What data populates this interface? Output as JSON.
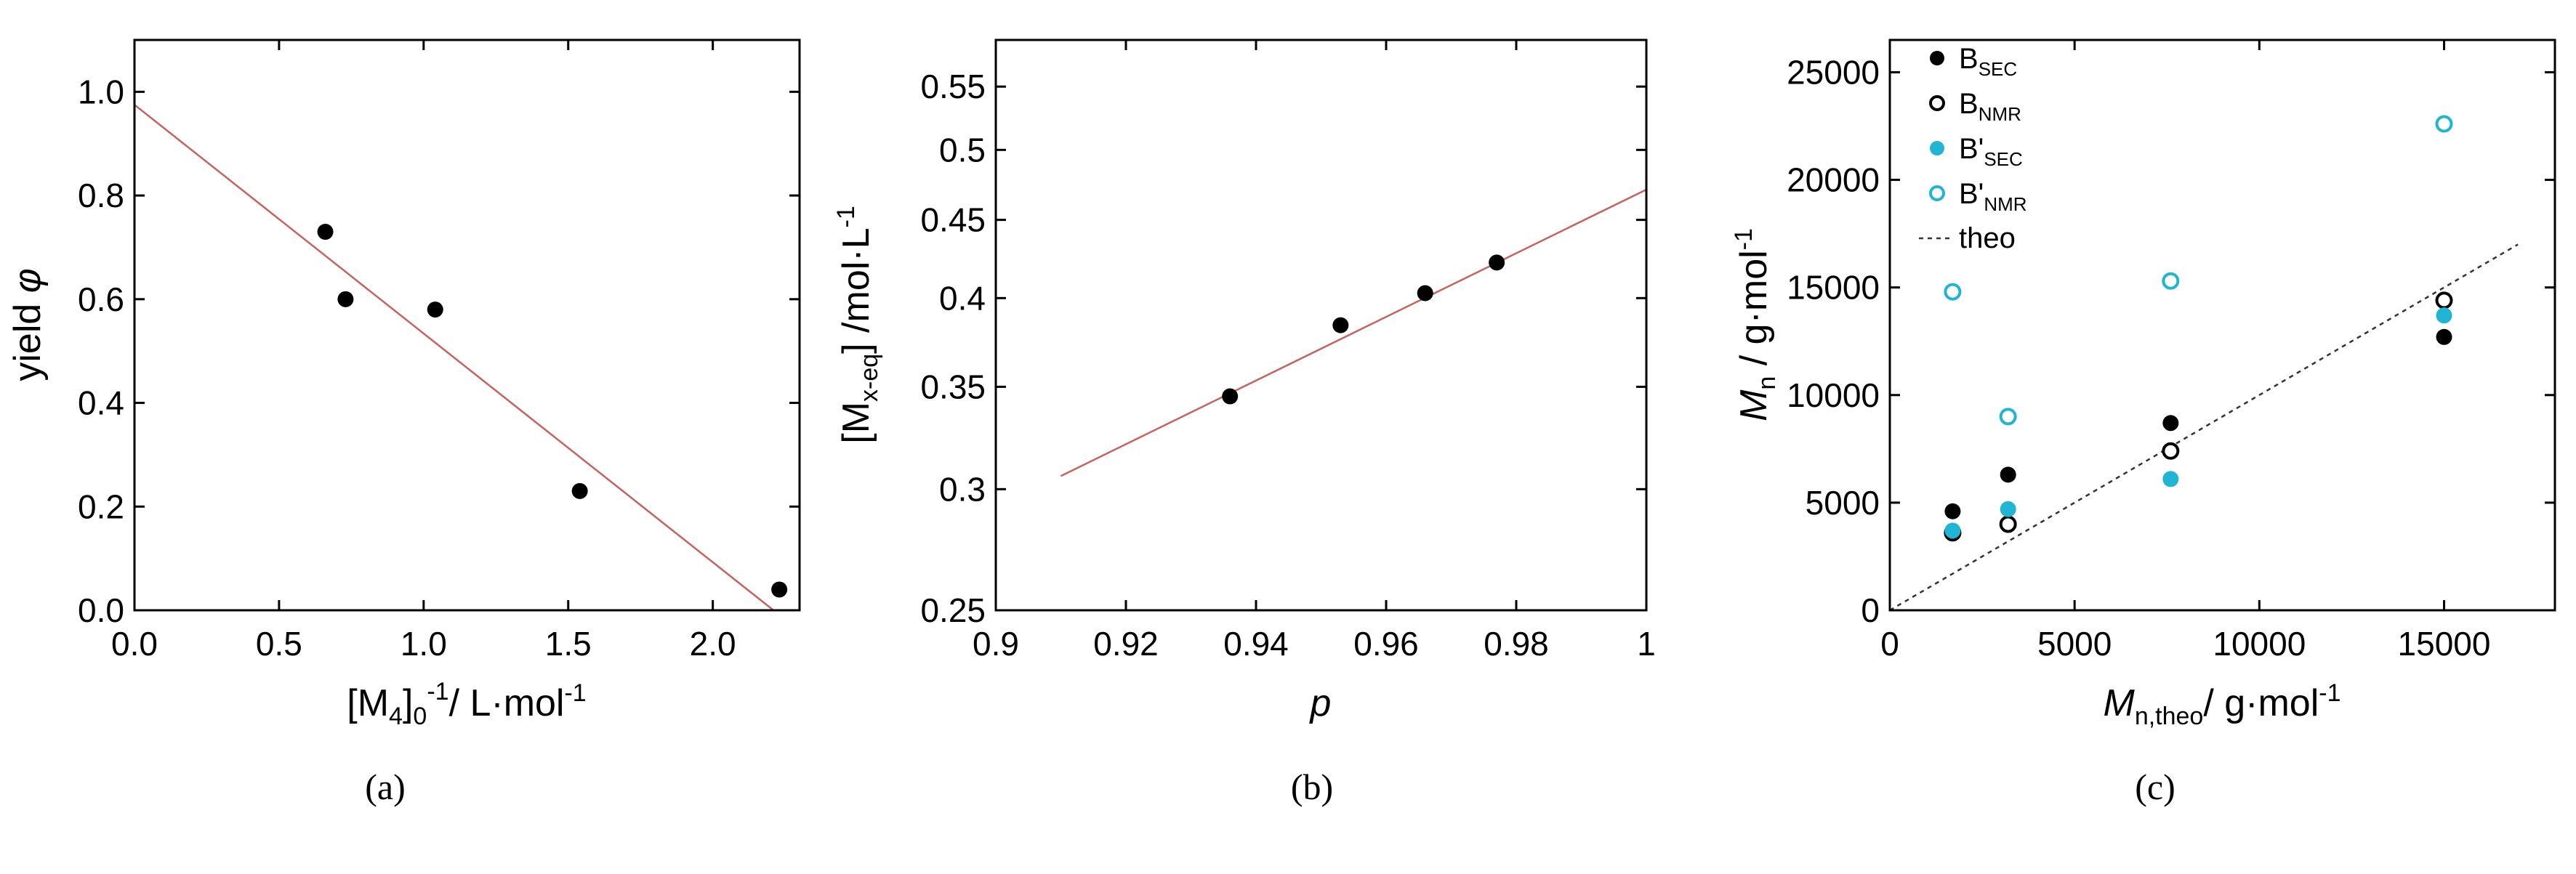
{
  "colors": {
    "filled_black": "#000000",
    "cyan": "#1fb5d3",
    "fit_line": "#c8625f",
    "theo_line": "#333333"
  },
  "chart_data": [
    {
      "id": "a",
      "type": "scatter",
      "caption": "(a)",
      "xlabel": {
        "main": "[M",
        "sub1": "4",
        "mid": "]",
        "sub2": "0",
        "sup": "-1",
        "tail": "/ L·mol",
        "sup2": "-1"
      },
      "ylabel": {
        "main": "yield ",
        "italic": "φ"
      },
      "xlim": [
        0.0,
        2.3
      ],
      "ylim": [
        0.0,
        1.1
      ],
      "x_ticks": [
        0.0,
        0.5,
        1.0,
        1.5,
        2.0
      ],
      "x_tick_labels": [
        "0.0",
        "0.5",
        "1.0",
        "1.5",
        "2.0"
      ],
      "y_ticks": [
        0.0,
        0.2,
        0.4,
        0.6,
        0.8,
        1.0
      ],
      "y_tick_labels": [
        "0.0",
        "0.2",
        "0.4",
        "0.6",
        "0.8",
        "1.0"
      ],
      "series": [
        {
          "style": "filled",
          "color": "#000000",
          "x": [
            0.66,
            0.73,
            1.04,
            1.54,
            2.23
          ],
          "y": [
            0.73,
            0.6,
            0.58,
            0.23,
            0.04
          ]
        }
      ],
      "fit_line": {
        "x": [
          0.0,
          2.21
        ],
        "y": [
          0.975,
          0.0
        ],
        "color": "#c8625f"
      }
    },
    {
      "id": "b",
      "type": "scatter",
      "caption": "(b)",
      "xlabel": {
        "italic": "p"
      },
      "ylabel": {
        "main": "[M",
        "sub": "x-eq",
        "tail": "] /mol·L",
        "sup": "-1"
      },
      "y_scale": "log",
      "xlim": [
        0.9,
        1.0
      ],
      "ylim": [
        0.25,
        0.59
      ],
      "x_ticks": [
        0.9,
        0.92,
        0.94,
        0.96,
        0.98,
        1.0
      ],
      "x_tick_labels": [
        "0.9",
        "0.92",
        "0.94",
        "0.96",
        "0.98",
        "1"
      ],
      "y_ticks": [
        0.25,
        0.3,
        0.35,
        0.4,
        0.45,
        0.5,
        0.55
      ],
      "y_tick_labels": [
        "0.25",
        "0.3",
        "0.35",
        "0.4",
        "0.45",
        "0.5",
        "0.55"
      ],
      "series": [
        {
          "style": "filled",
          "color": "#000000",
          "x": [
            0.936,
            0.953,
            0.966,
            0.977
          ],
          "y": [
            0.345,
            0.384,
            0.403,
            0.422
          ]
        }
      ],
      "fit_line": {
        "x": [
          0.91,
          1.0
        ],
        "y": [
          0.306,
          0.471
        ],
        "color": "#c8625f"
      }
    },
    {
      "id": "c",
      "type": "scatter",
      "caption": "(c)",
      "xlabel": {
        "italic": "M",
        "sub": "n,theo",
        "tail": "/ g·mol",
        "sup": "-1"
      },
      "ylabel": {
        "italic": "M",
        "sub": "n",
        "tail": " / g·mol",
        "sup": "-1"
      },
      "xlim": [
        0,
        18000
      ],
      "ylim": [
        0,
        26500
      ],
      "x_ticks": [
        0,
        5000,
        10000,
        15000
      ],
      "x_tick_labels": [
        "0",
        "5000",
        "10000",
        "15000"
      ],
      "y_ticks": [
        0,
        5000,
        10000,
        15000,
        20000,
        25000
      ],
      "y_tick_labels": [
        "0",
        "5000",
        "10000",
        "15000",
        "20000",
        "25000"
      ],
      "series": [
        {
          "name": "B",
          "sub": "SEC",
          "style": "filled",
          "color": "#000000",
          "x": [
            1700,
            3200,
            7600,
            15000
          ],
          "y": [
            4600,
            6300,
            8700,
            12700
          ]
        },
        {
          "name": "B",
          "sub": "NMR",
          "style": "open",
          "color": "#000000",
          "x": [
            1700,
            3200,
            7600,
            15000
          ],
          "y": [
            3600,
            4000,
            7400,
            14400
          ]
        },
        {
          "name": "B'",
          "sub": "SEC",
          "style": "filled",
          "color": "#1fb5d3",
          "x": [
            1700,
            3200,
            7600,
            15000
          ],
          "y": [
            3700,
            4700,
            6100,
            13700
          ]
        },
        {
          "name": "B'",
          "sub": "NMR",
          "style": "open",
          "color": "#1fb5d3",
          "x": [
            1700,
            3200,
            7600,
            15000
          ],
          "y": [
            14800,
            9000,
            15300,
            22600
          ]
        }
      ],
      "theo_line": {
        "name": "theo",
        "x": [
          0,
          17000
        ],
        "y": [
          0,
          17000
        ],
        "color": "#333333"
      },
      "legend_position": "top-left"
    }
  ]
}
